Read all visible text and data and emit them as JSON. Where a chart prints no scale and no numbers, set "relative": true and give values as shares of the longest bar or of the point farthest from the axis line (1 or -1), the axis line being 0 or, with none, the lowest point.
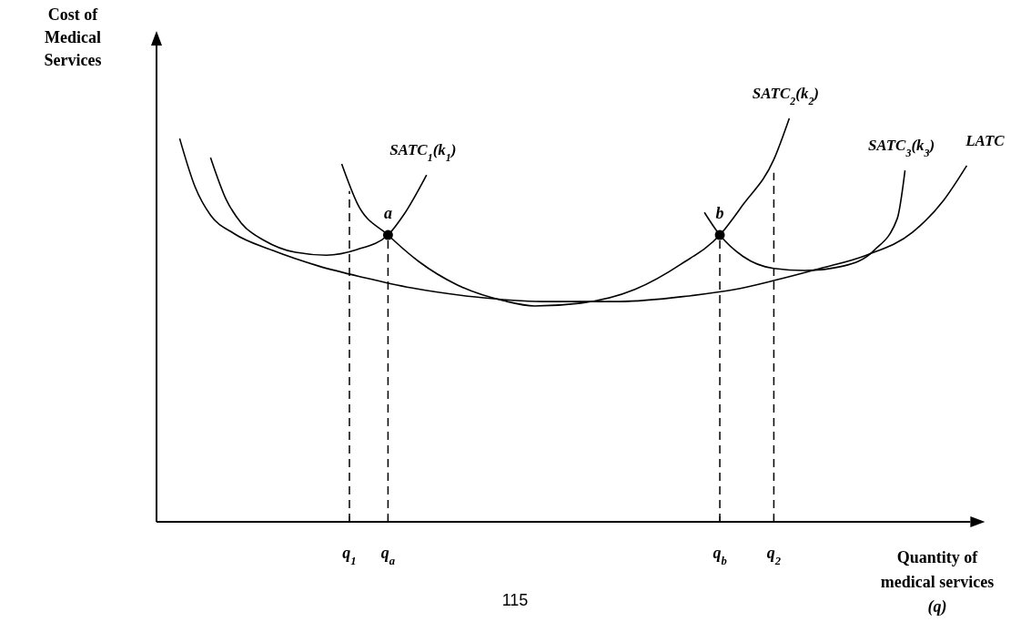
{
  "chart_data": {
    "type": "line",
    "relative": true,
    "ylabel": "Cost of\nMedical\nServices",
    "xlabel": "Quantity of\nmedical services\n(q)",
    "categories": [
      null,
      null,
      null,
      null,
      null,
      null,
      null,
      null,
      null,
      null,
      null,
      null,
      null,
      null,
      null,
      null,
      null,
      null,
      null,
      null,
      null,
      null,
      null,
      null,
      null,
      "q$_{1}$",
      null,
      null,
      null,
      null,
      "q$_{a}$",
      null,
      null,
      null,
      null,
      null,
      null,
      null,
      null,
      null,
      null,
      null,
      null,
      null,
      null,
      null,
      null,
      null,
      null,
      null,
      null,
      null,
      null,
      null,
      null,
      null,
      null,
      null,
      null,
      null,
      null,
      null,
      null,
      null,
      null,
      null,
      null,
      null,
      null,
      null,
      null,
      null,
      null,
      "q$_{b}$",
      null,
      null,
      null,
      null,
      null,
      null,
      "q$_{2}$",
      null,
      null,
      null,
      null,
      null,
      null,
      null,
      null,
      null,
      null,
      null,
      null,
      null,
      null,
      null,
      null,
      null,
      null,
      null,
      null,
      null,
      null,
      null,
      null,
      null
    ],
    "legend": false,
    "marker": "none",
    "line_style": "solid",
    "series": [
      {
        "name": "SATC$_{1}$(k$_{1}$)",
        "color": "#000000",
        "values": [
          null,
          null,
          null,
          null,
          null,
          null,
          null,
          0.903,
          null,
          0.8,
          null,
          0.74,
          null,
          null,
          0.697,
          null,
          null,
          null,
          0.668,
          null,
          null,
          null,
          0.661,
          null,
          null,
          null,
          0.675,
          null,
          null,
          null,
          0.711,
          null,
          0.76,
          null,
          null,
          0.86,
          null,
          null,
          null,
          null,
          null,
          null,
          null,
          null,
          null,
          null,
          null,
          null,
          null,
          null,
          null,
          null,
          null,
          null,
          null,
          null,
          null,
          null,
          null,
          null,
          null,
          null,
          null,
          null,
          null,
          null,
          null,
          null,
          null,
          null,
          null,
          null,
          null,
          null,
          null,
          null,
          null,
          null,
          null,
          null,
          null,
          null,
          null,
          null,
          null,
          null,
          null,
          null,
          null,
          null,
          null,
          null,
          null,
          null,
          null,
          null,
          null,
          null,
          null,
          null,
          null,
          null,
          null,
          null,
          null,
          null
        ]
      },
      {
        "name": "SATC$_{2}$(k$_{2}$)",
        "color": "#000000",
        "values": [
          null,
          null,
          null,
          null,
          null,
          null,
          null,
          null,
          null,
          null,
          null,
          null,
          null,
          null,
          null,
          null,
          null,
          null,
          null,
          null,
          null,
          null,
          null,
          null,
          0.887,
          null,
          0.79,
          null,
          null,
          null,
          0.711,
          null,
          null,
          null,
          0.645,
          null,
          null,
          null,
          null,
          0.587,
          null,
          null,
          null,
          null,
          null,
          0.548,
          null,
          null,
          null,
          0.535,
          null,
          null,
          null,
          null,
          null,
          0.542,
          null,
          null,
          null,
          null,
          null,
          null,
          0.576,
          null,
          null,
          null,
          null,
          null,
          0.639,
          null,
          null,
          null,
          null,
          0.711,
          null,
          null,
          0.786,
          null,
          null,
          null,
          0.898,
          null,
          1.0,
          null,
          null,
          null,
          null,
          null,
          null,
          null,
          null,
          null,
          null,
          null,
          null,
          null,
          null,
          null,
          null,
          null,
          null,
          null,
          null,
          null,
          null,
          null
        ]
      },
      {
        "name": "SATC$_{3}$(k$_{3}$)",
        "color": "#000000",
        "values": [
          null,
          null,
          null,
          null,
          null,
          null,
          null,
          null,
          null,
          null,
          null,
          null,
          null,
          null,
          null,
          null,
          null,
          null,
          null,
          null,
          null,
          null,
          null,
          null,
          null,
          null,
          null,
          null,
          null,
          null,
          null,
          null,
          null,
          null,
          null,
          null,
          null,
          null,
          null,
          null,
          null,
          null,
          null,
          null,
          null,
          null,
          null,
          null,
          null,
          null,
          null,
          null,
          null,
          null,
          null,
          null,
          null,
          null,
          null,
          null,
          null,
          null,
          null,
          null,
          null,
          null,
          null,
          null,
          null,
          null,
          null,
          0.767,
          null,
          0.711,
          null,
          null,
          0.658,
          null,
          null,
          null,
          0.628,
          null,
          null,
          null,
          0.623,
          null,
          null,
          null,
          null,
          0.634,
          null,
          null,
          null,
          0.673,
          null,
          null,
          0.752,
          0.871,
          null,
          null,
          null,
          null,
          null,
          null,
          null,
          null
        ]
      },
      {
        "name": "LATC",
        "color": "#000000",
        "values": [
          null,
          null,
          null,
          0.95,
          null,
          0.83,
          null,
          0.76,
          null,
          null,
          0.715,
          null,
          null,
          null,
          null,
          0.673,
          null,
          null,
          null,
          null,
          null,
          0.634,
          null,
          null,
          null,
          null,
          null,
          0.605,
          null,
          null,
          null,
          null,
          null,
          0.58,
          null,
          null,
          null,
          null,
          null,
          null,
          null,
          0.558,
          null,
          null,
          null,
          null,
          null,
          null,
          null,
          null,
          0.546,
          null,
          null,
          null,
          null,
          null,
          null,
          null,
          null,
          null,
          0.546,
          null,
          null,
          null,
          null,
          null,
          null,
          null,
          null,
          0.56,
          null,
          null,
          null,
          null,
          null,
          0.576,
          null,
          null,
          null,
          null,
          0.598,
          null,
          null,
          null,
          null,
          null,
          0.628,
          null,
          null,
          null,
          null,
          null,
          0.661,
          null,
          null,
          null,
          null,
          null,
          0.718,
          null,
          null,
          null,
          0.797,
          null,
          null,
          0.883
        ]
      },
      {
        "type": "scatter",
        "marker": "circle",
        "color": "#000000",
        "values": [
          null,
          null,
          null,
          null,
          null,
          null,
          null,
          null,
          null,
          null,
          null,
          null,
          null,
          null,
          null,
          null,
          null,
          null,
          null,
          null,
          null,
          null,
          null,
          null,
          null,
          null,
          null,
          null,
          null,
          null,
          0.711,
          null,
          null,
          null,
          null,
          null,
          null,
          null,
          null,
          null,
          null,
          null,
          null,
          null,
          null,
          null,
          null,
          null,
          null,
          null,
          null,
          null,
          null,
          null,
          null,
          null,
          null,
          null,
          null,
          null,
          null,
          null,
          null,
          null,
          null,
          null,
          null,
          null,
          null,
          null,
          null,
          null,
          null,
          0.711,
          null,
          null,
          null,
          null,
          null,
          null,
          null,
          null,
          null,
          null,
          null,
          null,
          null,
          null,
          null,
          null,
          null,
          null,
          null,
          null,
          null,
          null,
          null,
          null,
          null,
          null,
          null,
          null,
          null,
          null,
          null,
          null
        ]
      }
    ],
    "ref_lines": [
      {
        "axis": "x",
        "value": "q$_{1}$",
        "line_style": "dashed"
      },
      {
        "axis": "x",
        "value": "q$_{a}$",
        "line_style": "dashed"
      },
      {
        "axis": "x",
        "value": "q$_{b}$",
        "line_style": "dashed"
      },
      {
        "axis": "x",
        "value": "q$_{2}$",
        "line_style": "dashed"
      }
    ],
    "annotations": [
      {
        "text": "a",
        "x": "q$_{a}$",
        "y": 0.711
      },
      {
        "text": "b",
        "x": "q$_{b}$",
        "y": 0.711
      },
      "115"
    ]
  }
}
